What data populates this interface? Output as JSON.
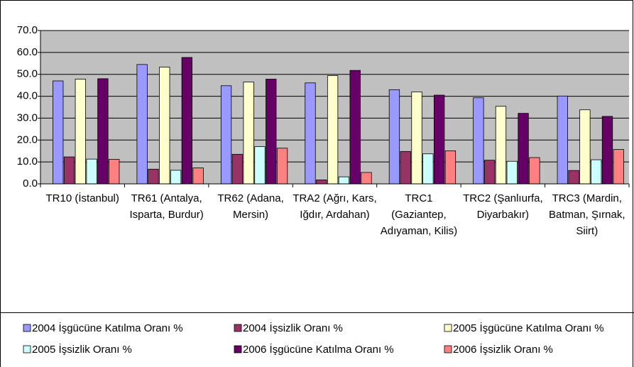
{
  "chart_data": {
    "type": "bar",
    "categories": [
      "TR10 (İstanbul)",
      "TR61 (Antalya, Isparta, Burdur)",
      "TR62 (Adana, Mersin)",
      "TRA2 (Ağrı, Kars, Iğdır, Ardahan)",
      "TRC1 (Gaziantep, Adıyaman, Kilis)",
      "TRC2 (Şanlıurfa, Diyarbakır)",
      "TRC3 (Mardin, Batman, Şırnak, Siirt)"
    ],
    "series": [
      {
        "name": "2004 İşgücüne Katılma Oranı %",
        "color": "#9999ff",
        "values": [
          47.0,
          54.5,
          44.8,
          46.1,
          43.0,
          39.3,
          40.1
        ]
      },
      {
        "name": "2004 İşsizlik Oranı %",
        "color": "#993366",
        "values": [
          12.3,
          6.7,
          13.5,
          1.8,
          14.8,
          10.8,
          6.1
        ]
      },
      {
        "name": "2005 İşgücüne Katılma Oranı %",
        "color": "#ffffcc",
        "values": [
          47.8,
          53.3,
          46.5,
          49.4,
          42.0,
          35.4,
          33.8
        ]
      },
      {
        "name": "2005 İşsizlik Oranı %",
        "color": "#ccffff",
        "values": [
          11.3,
          6.2,
          17.0,
          3.2,
          13.7,
          10.3,
          11.0
        ]
      },
      {
        "name": "2006 İşgücüne Katılma Oranı %",
        "color": "#660066",
        "values": [
          48.0,
          57.7,
          47.8,
          51.8,
          40.5,
          32.2,
          30.8
        ]
      },
      {
        "name": "2006 İşsizlik Oranı %",
        "color": "#ff8080",
        "values": [
          11.2,
          7.3,
          16.3,
          5.2,
          15.1,
          12.0,
          15.7
        ]
      }
    ],
    "ylim": [
      0,
      70
    ],
    "yticks": [
      {
        "value": 0,
        "label": "0.0"
      },
      {
        "value": 10,
        "label": "10.0"
      },
      {
        "value": 20,
        "label": "20.0"
      },
      {
        "value": 30,
        "label": "30.0"
      },
      {
        "value": 40,
        "label": "40.0"
      },
      {
        "value": 50,
        "label": "50.0"
      },
      {
        "value": 60,
        "label": "60.0"
      },
      {
        "value": 70,
        "label": "70.0"
      }
    ],
    "grid": true,
    "legend": "bottom"
  }
}
